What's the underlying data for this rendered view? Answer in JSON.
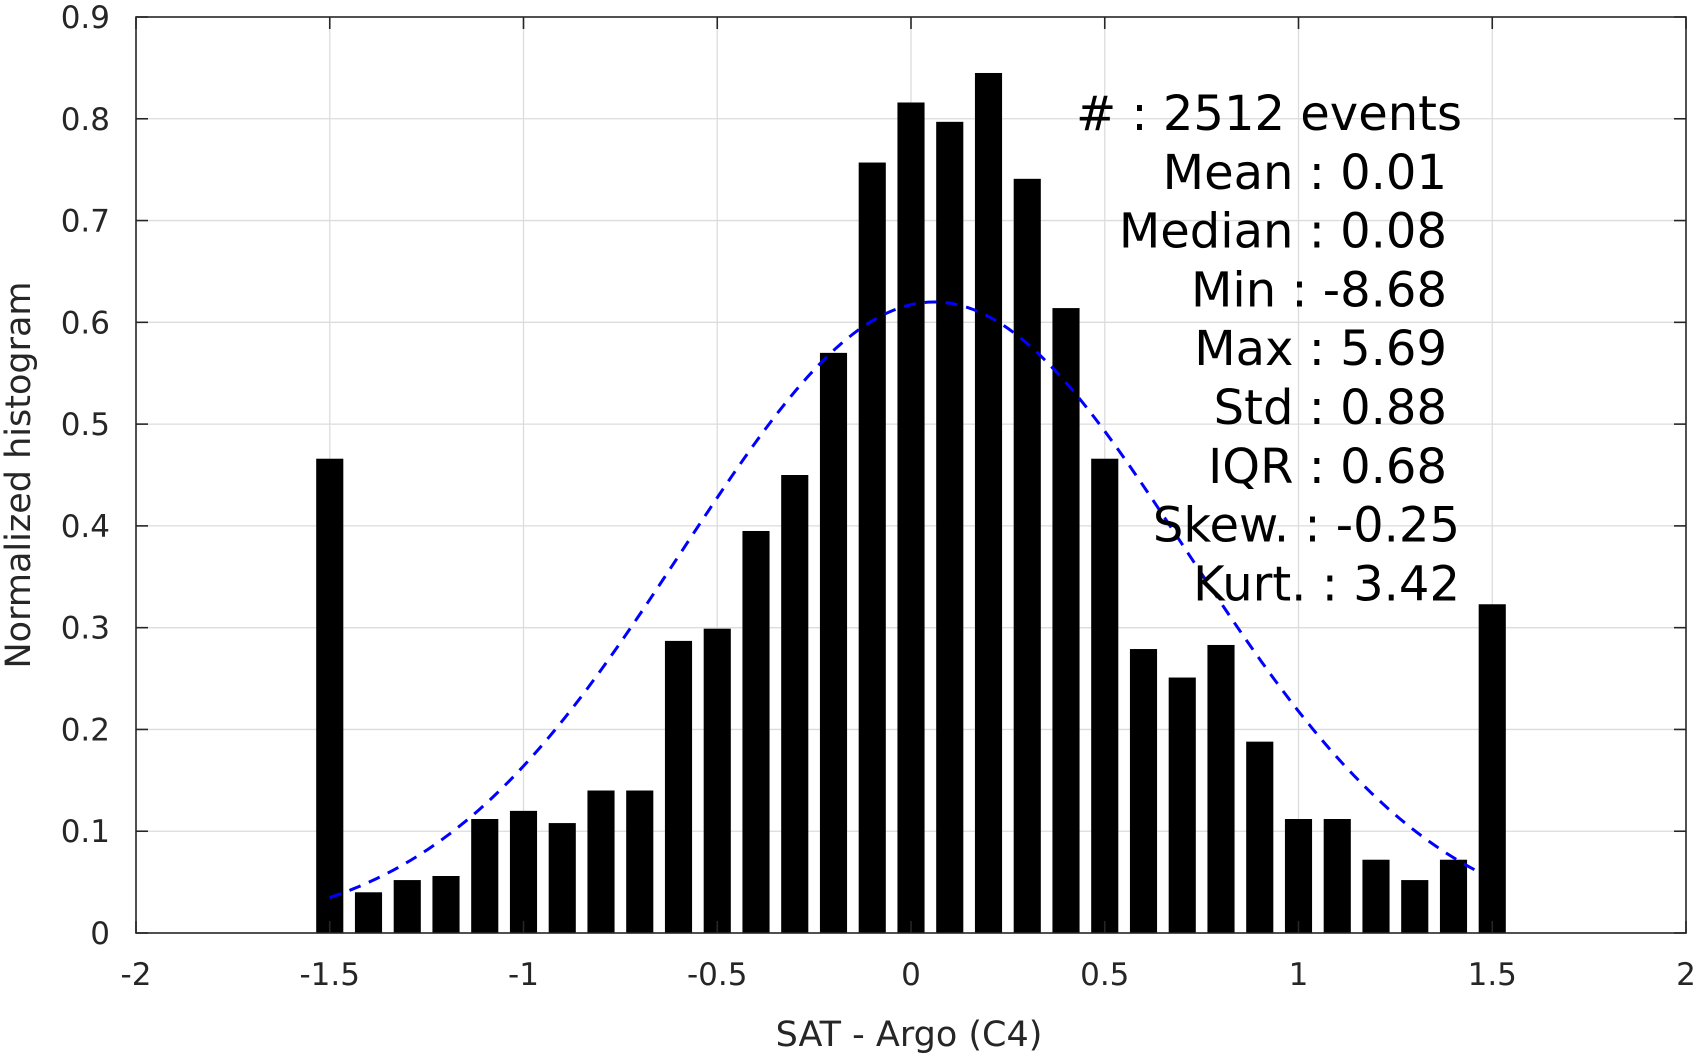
{
  "chart_data": {
    "type": "bar",
    "title": "",
    "xlabel": "SAT - Argo (C4)",
    "ylabel": "Normalized histogram",
    "xlim": [
      -2,
      2
    ],
    "ylim": [
      0,
      0.9
    ],
    "grid": true,
    "xticks": [
      -2,
      -1.5,
      -1,
      -0.5,
      0,
      0.5,
      1,
      1.5,
      2
    ],
    "xtick_labels": [
      "-2",
      "-1.5",
      "-1",
      "-0.5",
      "0",
      "0.5",
      "1",
      "1.5",
      "2"
    ],
    "yticks": [
      0,
      0.1,
      0.2,
      0.3,
      0.4,
      0.5,
      0.6,
      0.7,
      0.8,
      0.9
    ],
    "ytick_labels": [
      "0",
      "0.1",
      "0.2",
      "0.3",
      "0.4",
      "0.5",
      "0.6",
      "0.7",
      "0.8",
      "0.9"
    ],
    "bar_width": 0.07,
    "bars": {
      "x": [
        -1.5,
        -1.4,
        -1.3,
        -1.2,
        -1.1,
        -1.0,
        -0.9,
        -0.8,
        -0.7,
        -0.6,
        -0.5,
        -0.4,
        -0.3,
        -0.2,
        -0.1,
        0.0,
        0.1,
        0.2,
        0.3,
        0.4,
        0.5,
        0.6,
        0.7,
        0.8,
        0.9,
        1.0,
        1.1,
        1.2,
        1.3,
        1.4,
        1.5
      ],
      "values": [
        0.466,
        0.04,
        0.052,
        0.056,
        0.112,
        0.12,
        0.108,
        0.14,
        0.14,
        0.287,
        0.299,
        0.395,
        0.45,
        0.57,
        0.757,
        0.816,
        0.797,
        0.845,
        0.741,
        0.614,
        0.466,
        0.279,
        0.251,
        0.283,
        0.188,
        0.112,
        0.112,
        0.072,
        0.052,
        0.072,
        0.323
      ],
      "color": "#000000"
    },
    "fit_curve": {
      "type": "normal",
      "mean": 0.06,
      "std": 0.65,
      "peak": 0.62,
      "x_range": [
        -1.5,
        1.47
      ],
      "color": "#0000ff",
      "style": "dashed"
    },
    "annotation": {
      "lines": [
        "#  : 2512 events",
        "Mean : 0.01",
        "Median : 0.08",
        "Min : -8.68",
        "Max : 5.69",
        "Std : 0.88",
        "IQR : 0.68",
        "Skew. : -0.25",
        "Kurt. : 3.42"
      ]
    }
  }
}
